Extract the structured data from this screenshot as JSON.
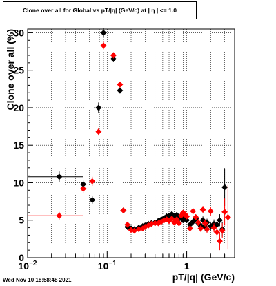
{
  "title": "Clone  over all for Global vs pT/|q| (GeV/c) at |  η | <= 1.0",
  "timestamp": "Wed Nov 10 18:58:48 2021",
  "chart_data": {
    "type": "scatter",
    "title": "Clone  over all for Global vs pT/|q| (GeV/c) at |  η | <= 1.0",
    "xlabel": "pT/|q| (GeV/c)",
    "ylabel": "Clone  over all (%)",
    "x_scale": "log",
    "xlim": [
      0.01,
      4.0
    ],
    "ylim": [
      0,
      30.5
    ],
    "x_ticks": [
      {
        "label": "10",
        "exp": "−2",
        "value": 0.01
      },
      {
        "label": "10",
        "exp": "−1",
        "value": 0.1
      },
      {
        "label": "1",
        "exp": "",
        "value": 1
      }
    ],
    "y_ticks": [
      0,
      5,
      10,
      15,
      20,
      25,
      30
    ],
    "grid": true,
    "colors": {
      "black_series": "#000000",
      "red_series": "#ff0000"
    },
    "series": [
      {
        "color": "#000000",
        "points": [
          {
            "x": 0.025,
            "y": 10.8,
            "xerr": [
              0.015,
              0.025
            ],
            "yerr": 0.7
          },
          {
            "x": 0.05,
            "y": 9.8,
            "xerr": [
              0.004,
              0.005
            ],
            "yerr": 0.5
          },
          {
            "x": 0.065,
            "y": 7.7,
            "xerr": [
              0.004,
              0.005
            ],
            "yerr": 0.6
          },
          {
            "x": 0.078,
            "y": 20.0,
            "xerr": [
              0.004,
              0.004
            ],
            "yerr": 0.7
          },
          {
            "x": 0.09,
            "y": 30.0,
            "xerr": [
              0.004,
              0.004
            ],
            "yerr": 0.6
          },
          {
            "x": 0.12,
            "y": 26.5,
            "xerr": [
              0.005,
              0.006
            ],
            "yerr": 0.4
          },
          {
            "x": 0.145,
            "y": 22.3,
            "xerr": [
              0.006,
              0.006
            ],
            "yerr": 0.4
          },
          {
            "x": 0.16,
            "y": 6.3,
            "xerr": [
              0.006,
              0.006
            ],
            "yerr": 0.3
          },
          {
            "x": 0.18,
            "y": 4.1,
            "yerr": 0.25
          },
          {
            "x": 0.2,
            "y": 3.9,
            "yerr": 0.25
          },
          {
            "x": 0.22,
            "y": 3.8,
            "yerr": 0.25
          },
          {
            "x": 0.25,
            "y": 4.0,
            "yerr": 0.25
          },
          {
            "x": 0.28,
            "y": 4.2,
            "yerr": 0.25
          },
          {
            "x": 0.3,
            "y": 4.3,
            "yerr": 0.25
          },
          {
            "x": 0.33,
            "y": 4.5,
            "yerr": 0.25
          },
          {
            "x": 0.36,
            "y": 4.6,
            "yerr": 0.25
          },
          {
            "x": 0.4,
            "y": 4.7,
            "yerr": 0.25
          },
          {
            "x": 0.44,
            "y": 4.9,
            "yerr": 0.25
          },
          {
            "x": 0.48,
            "y": 5.1,
            "yerr": 0.25
          },
          {
            "x": 0.52,
            "y": 5.3,
            "yerr": 0.25
          },
          {
            "x": 0.56,
            "y": 5.5,
            "yerr": 0.25
          },
          {
            "x": 0.6,
            "y": 5.6,
            "yerr": 0.3
          },
          {
            "x": 0.65,
            "y": 5.8,
            "yerr": 0.3
          },
          {
            "x": 0.7,
            "y": 5.4,
            "yerr": 0.3
          },
          {
            "x": 0.75,
            "y": 5.7,
            "yerr": 0.3
          },
          {
            "x": 0.8,
            "y": 5.2,
            "yerr": 0.3
          },
          {
            "x": 0.85,
            "y": 5.5,
            "yerr": 0.3
          },
          {
            "x": 0.9,
            "y": 5.0,
            "yerr": 0.3
          },
          {
            "x": 0.95,
            "y": 5.3,
            "yerr": 0.35
          },
          {
            "x": 1.0,
            "y": 5.0,
            "yerr": 0.35
          },
          {
            "x": 1.1,
            "y": 4.4,
            "yerr": 0.4
          },
          {
            "x": 1.2,
            "y": 4.8,
            "yerr": 0.4
          },
          {
            "x": 1.3,
            "y": 5.2,
            "yerr": 0.4
          },
          {
            "x": 1.4,
            "y": 4.6,
            "yerr": 0.45
          },
          {
            "x": 1.5,
            "y": 4.3,
            "yerr": 0.45
          },
          {
            "x": 1.6,
            "y": 5.0,
            "yerr": 0.5
          },
          {
            "x": 1.7,
            "y": 4.1,
            "yerr": 0.5
          },
          {
            "x": 1.8,
            "y": 4.7,
            "yerr": 0.5
          },
          {
            "x": 2.0,
            "y": 4.2,
            "yerr": 0.6
          },
          {
            "x": 2.2,
            "y": 4.5,
            "yerr": 0.6
          },
          {
            "x": 2.4,
            "y": 4.4,
            "yerr": 0.7
          },
          {
            "x": 2.6,
            "y": 5.0,
            "yerr": 0.8
          },
          {
            "x": 2.8,
            "y": 3.8,
            "yerr": 1.0
          },
          {
            "x": 3.0,
            "y": 9.4,
            "yerr": 2.5
          }
        ]
      },
      {
        "color": "#ff0000",
        "points": [
          {
            "x": 0.025,
            "y": 5.6,
            "xerr": [
              0.015,
              0.025
            ],
            "yerr": 0.5
          },
          {
            "x": 0.05,
            "y": 9.2,
            "xerr": [
              0.004,
              0.005
            ],
            "yerr": 0.6
          },
          {
            "x": 0.065,
            "y": 10.2,
            "xerr": [
              0.004,
              0.005
            ],
            "yerr": 0.6
          },
          {
            "x": 0.078,
            "y": 16.8,
            "xerr": [
              0.004,
              0.004
            ],
            "yerr": 0.5
          },
          {
            "x": 0.09,
            "y": 28.3,
            "xerr": [
              0.004,
              0.004
            ],
            "yerr": 0.5
          },
          {
            "x": 0.12,
            "y": 27.0,
            "xerr": [
              0.005,
              0.006
            ],
            "yerr": 0.4
          },
          {
            "x": 0.145,
            "y": 23.1,
            "xerr": [
              0.006,
              0.006
            ],
            "yerr": 0.4
          },
          {
            "x": 0.16,
            "y": 6.3,
            "xerr": [
              0.006,
              0.006
            ],
            "yerr": 0.3
          },
          {
            "x": 0.18,
            "y": 4.4,
            "yerr": 0.25
          },
          {
            "x": 0.2,
            "y": 3.7,
            "yerr": 0.25
          },
          {
            "x": 0.22,
            "y": 3.6,
            "yerr": 0.25
          },
          {
            "x": 0.25,
            "y": 3.8,
            "yerr": 0.25
          },
          {
            "x": 0.28,
            "y": 3.9,
            "yerr": 0.25
          },
          {
            "x": 0.3,
            "y": 4.1,
            "yerr": 0.25
          },
          {
            "x": 0.33,
            "y": 4.3,
            "yerr": 0.25
          },
          {
            "x": 0.36,
            "y": 4.5,
            "yerr": 0.25
          },
          {
            "x": 0.4,
            "y": 4.6,
            "yerr": 0.25
          },
          {
            "x": 0.44,
            "y": 4.6,
            "yerr": 0.25
          },
          {
            "x": 0.48,
            "y": 4.8,
            "yerr": 0.25
          },
          {
            "x": 0.52,
            "y": 5.0,
            "yerr": 0.25
          },
          {
            "x": 0.56,
            "y": 5.1,
            "yerr": 0.25
          },
          {
            "x": 0.6,
            "y": 4.9,
            "yerr": 0.3
          },
          {
            "x": 0.65,
            "y": 5.2,
            "yerr": 0.3
          },
          {
            "x": 0.7,
            "y": 4.7,
            "yerr": 0.3
          },
          {
            "x": 0.75,
            "y": 5.1,
            "yerr": 0.3
          },
          {
            "x": 0.8,
            "y": 4.6,
            "yerr": 0.3
          },
          {
            "x": 0.85,
            "y": 5.6,
            "yerr": 0.3
          },
          {
            "x": 0.9,
            "y": 6.0,
            "yerr": 0.3
          },
          {
            "x": 0.95,
            "y": 5.8,
            "yerr": 0.35
          },
          {
            "x": 1.0,
            "y": 5.5,
            "yerr": 0.35
          },
          {
            "x": 1.1,
            "y": 3.9,
            "yerr": 0.4
          },
          {
            "x": 1.2,
            "y": 6.2,
            "yerr": 0.4
          },
          {
            "x": 1.3,
            "y": 5.4,
            "yerr": 0.4
          },
          {
            "x": 1.4,
            "y": 4.7,
            "yerr": 0.45
          },
          {
            "x": 1.5,
            "y": 3.9,
            "yerr": 0.45
          },
          {
            "x": 1.6,
            "y": 6.4,
            "yerr": 0.5
          },
          {
            "x": 1.7,
            "y": 4.6,
            "yerr": 0.5
          },
          {
            "x": 1.8,
            "y": 3.8,
            "yerr": 0.5
          },
          {
            "x": 2.0,
            "y": 6.2,
            "yerr": 0.6
          },
          {
            "x": 2.2,
            "y": 4.0,
            "yerr": 0.6
          },
          {
            "x": 2.4,
            "y": 3.4,
            "yerr": 0.7
          },
          {
            "x": 2.6,
            "y": 2.2,
            "yerr": 1.2
          },
          {
            "x": 2.8,
            "y": 3.6,
            "yerr": 1.0
          },
          {
            "x": 3.0,
            "y": 6.1,
            "yerr": 1.8
          },
          {
            "x": 3.3,
            "y": 5.4,
            "yerr": 4.3
          }
        ]
      }
    ]
  }
}
